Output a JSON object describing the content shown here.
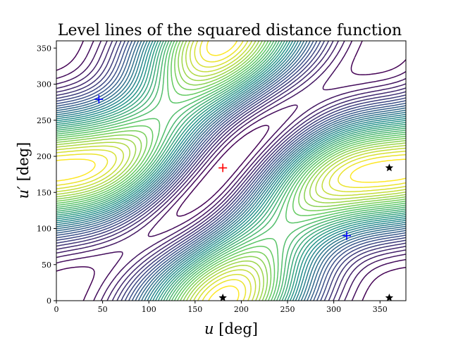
{
  "chart_data": {
    "type": "contour",
    "title": "Level lines of the squared distance function",
    "xlabel_var": "u",
    "xlabel_unit": "[deg]",
    "ylabel_var": "u′",
    "ylabel_unit": "[deg]",
    "xlim": [
      0,
      378
    ],
    "ylim": [
      0,
      360
    ],
    "xticks": [
      0,
      50,
      100,
      150,
      200,
      250,
      300,
      350
    ],
    "yticks": [
      0,
      50,
      100,
      150,
      200,
      250,
      300,
      350
    ],
    "grid": false,
    "colormap": [
      "#440154",
      "#3b528b",
      "#21918c",
      "#5ec962",
      "#fde725"
    ],
    "levels": 34,
    "markers": [
      {
        "symbol": "plus",
        "color": "#ff0000",
        "x": 180,
        "y": 184
      },
      {
        "symbol": "plus",
        "color": "#0000ff",
        "x": 46,
        "y": 279
      },
      {
        "symbol": "plus",
        "color": "#0000ff",
        "x": 314,
        "y": 90
      },
      {
        "symbol": "star",
        "color": "#000000",
        "x": 180,
        "y": 4
      },
      {
        "symbol": "star",
        "color": "#000000",
        "x": 360,
        "y": 4
      },
      {
        "symbol": "star",
        "color": "#000000",
        "x": 360,
        "y": 184
      }
    ]
  }
}
